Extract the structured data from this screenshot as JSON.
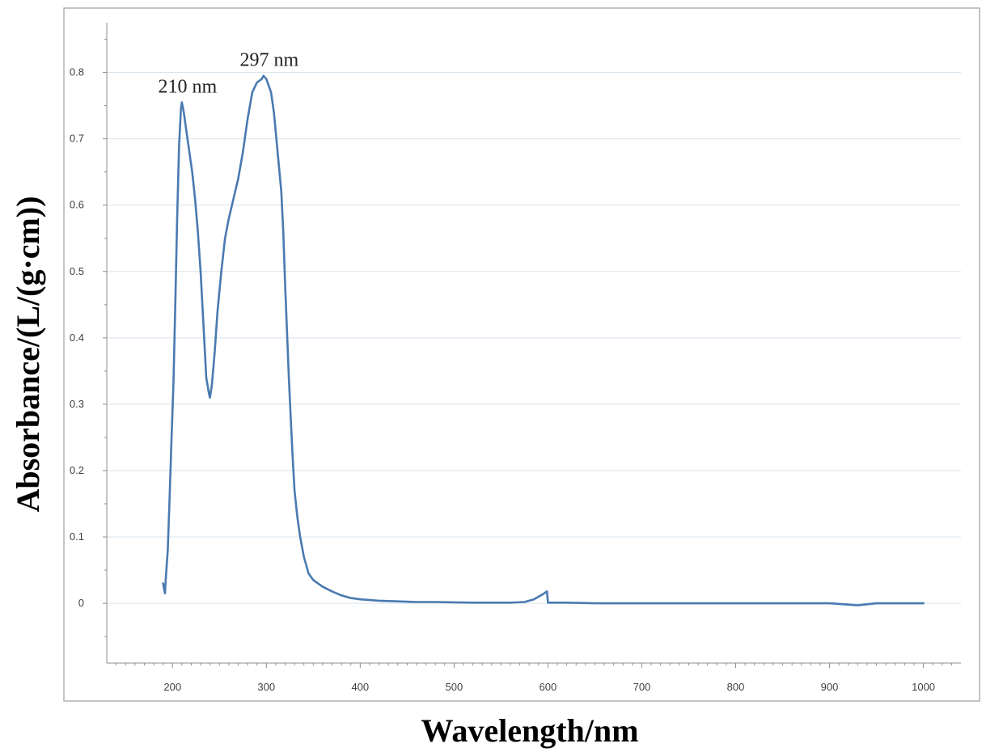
{
  "chart_data": {
    "type": "line",
    "xlabel": "Wavelength/nm",
    "ylabel": "Absorbance/(L/(g·cm))",
    "xlim": [
      130,
      1040
    ],
    "ylim": [
      -0.09,
      0.875
    ],
    "x_ticks": [
      200,
      300,
      400,
      500,
      600,
      700,
      800,
      900,
      1000
    ],
    "y_ticks": [
      0,
      0.1,
      0.2,
      0.3,
      0.4,
      0.5,
      0.6,
      0.7,
      0.8
    ],
    "y_tick_labels": [
      "0",
      "0.1",
      "0.2",
      "0.3",
      "0.4",
      "0.5",
      "0.6",
      "0.7",
      "0.8"
    ],
    "grid": "horizontal",
    "legend": "none",
    "series_color": "#4a7ab0",
    "annotations": [
      {
        "text": "210 nm",
        "x": 210,
        "y": 0.755
      },
      {
        "text": "297 nm",
        "x": 297,
        "y": 0.795
      }
    ],
    "series": [
      {
        "x": [
          190,
          192,
          193,
          195,
          197,
          199,
          201,
          203,
          205,
          207,
          209,
          210,
          212,
          215,
          218,
          221,
          224,
          227,
          230,
          233,
          236,
          239,
          240,
          242,
          245,
          248,
          252,
          256,
          260,
          265,
          270,
          275,
          280,
          285,
          290,
          295,
          297,
          300,
          305,
          308,
          312,
          316,
          318,
          320,
          322,
          324,
          326,
          328,
          330,
          333,
          336,
          340,
          345,
          350,
          360,
          370,
          380,
          390,
          400,
          420,
          440,
          460,
          480,
          500,
          520,
          540,
          560,
          575,
          585,
          590,
          595,
          598,
          599,
          600,
          620,
          650,
          700,
          750,
          800,
          850,
          900,
          930,
          950,
          1000
        ],
        "y": [
          0.03,
          0.015,
          0.04,
          0.08,
          0.16,
          0.25,
          0.33,
          0.45,
          0.58,
          0.69,
          0.745,
          0.755,
          0.74,
          0.71,
          0.68,
          0.65,
          0.61,
          0.56,
          0.5,
          0.42,
          0.34,
          0.315,
          0.31,
          0.33,
          0.38,
          0.44,
          0.5,
          0.55,
          0.58,
          0.61,
          0.64,
          0.68,
          0.73,
          0.77,
          0.785,
          0.79,
          0.795,
          0.79,
          0.77,
          0.74,
          0.68,
          0.62,
          0.56,
          0.48,
          0.41,
          0.34,
          0.28,
          0.22,
          0.17,
          0.13,
          0.1,
          0.07,
          0.045,
          0.035,
          0.025,
          0.018,
          0.012,
          0.008,
          0.006,
          0.004,
          0.003,
          0.002,
          0.002,
          0.0015,
          0.001,
          0.001,
          0.001,
          0.002,
          0.006,
          0.01,
          0.014,
          0.017,
          0.018,
          0.001,
          0.001,
          0.0,
          0.0,
          0.0,
          0.0,
          0.0,
          0.0,
          -0.003,
          0.0,
          0.0
        ]
      }
    ]
  }
}
